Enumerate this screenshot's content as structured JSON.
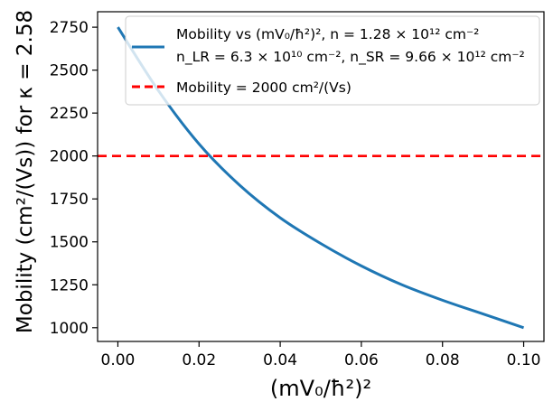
{
  "chart_data": {
    "type": "line",
    "xlabel": "(mV₀/ħ²)²",
    "ylabel": "Mobility (cm²/(Vs)) for  κ = 2.58",
    "xlim": [
      -0.005,
      0.105
    ],
    "ylim": [
      920,
      2840
    ],
    "x_ticks": [
      0.0,
      0.02,
      0.04,
      0.06,
      0.08,
      0.1
    ],
    "x_tick_labels": [
      "0.00",
      "0.02",
      "0.04",
      "0.06",
      "0.08",
      "0.10"
    ],
    "y_ticks": [
      1000,
      1250,
      1500,
      1750,
      2000,
      2250,
      2500,
      2750
    ],
    "y_tick_labels": [
      "1000",
      "1250",
      "1500",
      "1750",
      "2000",
      "2250",
      "2500",
      "2750"
    ],
    "series": [
      {
        "name": "Mobility vs (mV₀/ħ²)², n = 1.28 × 10¹² cm⁻²",
        "name_line2": "n_LR = 6.3 × 10¹⁰ cm⁻²,  n_SR = 9.66 × 10¹² cm⁻²",
        "style": "solid",
        "color": "#1f77b4",
        "x": [
          0.0,
          0.01,
          0.02,
          0.03,
          0.04,
          0.05,
          0.06,
          0.07,
          0.08,
          0.09,
          0.1
        ],
        "values": [
          2750,
          2380,
          2070,
          1830,
          1640,
          1490,
          1360,
          1250,
          1160,
          1080,
          1000
        ]
      },
      {
        "name": "Mobility = 2000 cm²/(Vs)",
        "style": "dashed",
        "color": "#ff0000",
        "y": 2000
      }
    ],
    "legend_position": "top-right",
    "grid": false
  }
}
